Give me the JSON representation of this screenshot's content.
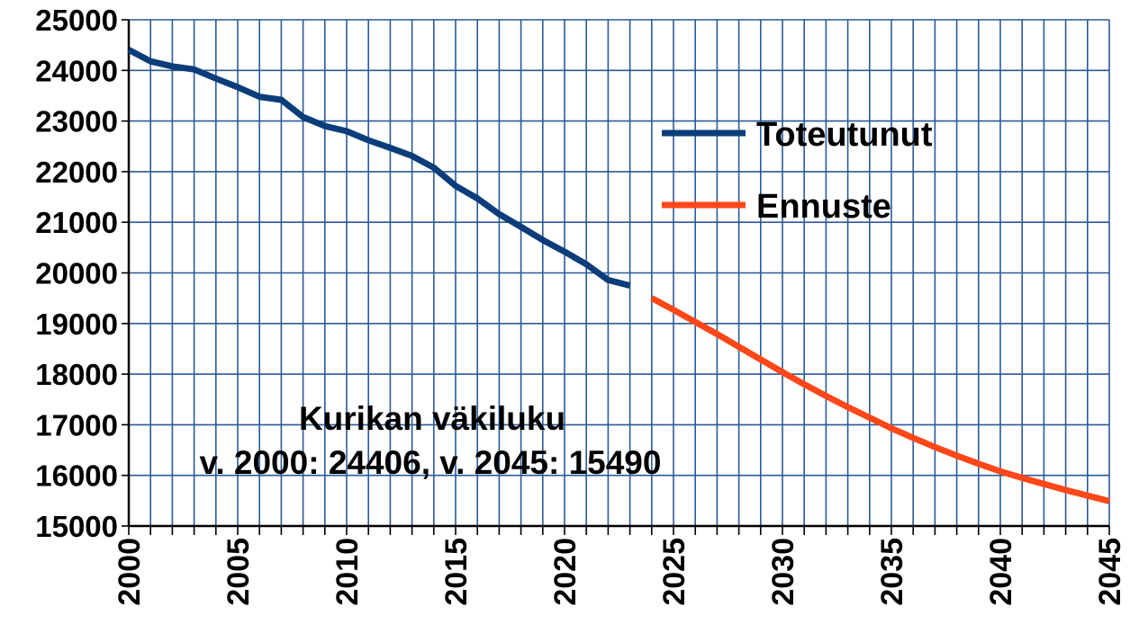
{
  "chart_data": {
    "type": "line",
    "title": "",
    "xlabel": "",
    "ylabel": "",
    "xlim": [
      2000,
      2045
    ],
    "ylim": [
      15000,
      25000
    ],
    "grid": true,
    "legend_position": "top-right",
    "y_ticks": [
      "15000",
      "16000",
      "17000",
      "18000",
      "19000",
      "20000",
      "21000",
      "22000",
      "23000",
      "24000",
      "25000"
    ],
    "x_ticks": [
      "2000",
      "2005",
      "2010",
      "2015",
      "2020",
      "2025",
      "2030",
      "2035",
      "2040",
      "2045"
    ],
    "series": [
      {
        "name": "Toteutunut",
        "color": "#0b3d7a",
        "x": [
          2000,
          2001,
          2002,
          2003,
          2004,
          2005,
          2006,
          2007,
          2008,
          2009,
          2010,
          2011,
          2012,
          2013,
          2014,
          2015,
          2016,
          2017,
          2018,
          2019,
          2020,
          2021,
          2022,
          2023
        ],
        "values": [
          24406,
          24180,
          24080,
          24020,
          23840,
          23670,
          23480,
          23420,
          23080,
          22900,
          22800,
          22620,
          22470,
          22310,
          22080,
          21720,
          21470,
          21160,
          20910,
          20650,
          20420,
          20170,
          19860,
          19750
        ]
      },
      {
        "name": "Ennuste",
        "color": "#ff4719",
        "x": [
          2024,
          2025,
          2026,
          2027,
          2028,
          2029,
          2030,
          2031,
          2032,
          2033,
          2034,
          2035,
          2036,
          2037,
          2038,
          2039,
          2040,
          2041,
          2042,
          2043,
          2044,
          2045
        ],
        "values": [
          19500,
          19270,
          19030,
          18790,
          18540,
          18290,
          18040,
          17800,
          17570,
          17350,
          17140,
          16930,
          16740,
          16560,
          16390,
          16230,
          16080,
          15950,
          15830,
          15710,
          15600,
          15490
        ]
      }
    ],
    "annotations": [
      "Kurikan väkiluku",
      "v. 2000: 24406, v. 2045: 15490"
    ]
  }
}
